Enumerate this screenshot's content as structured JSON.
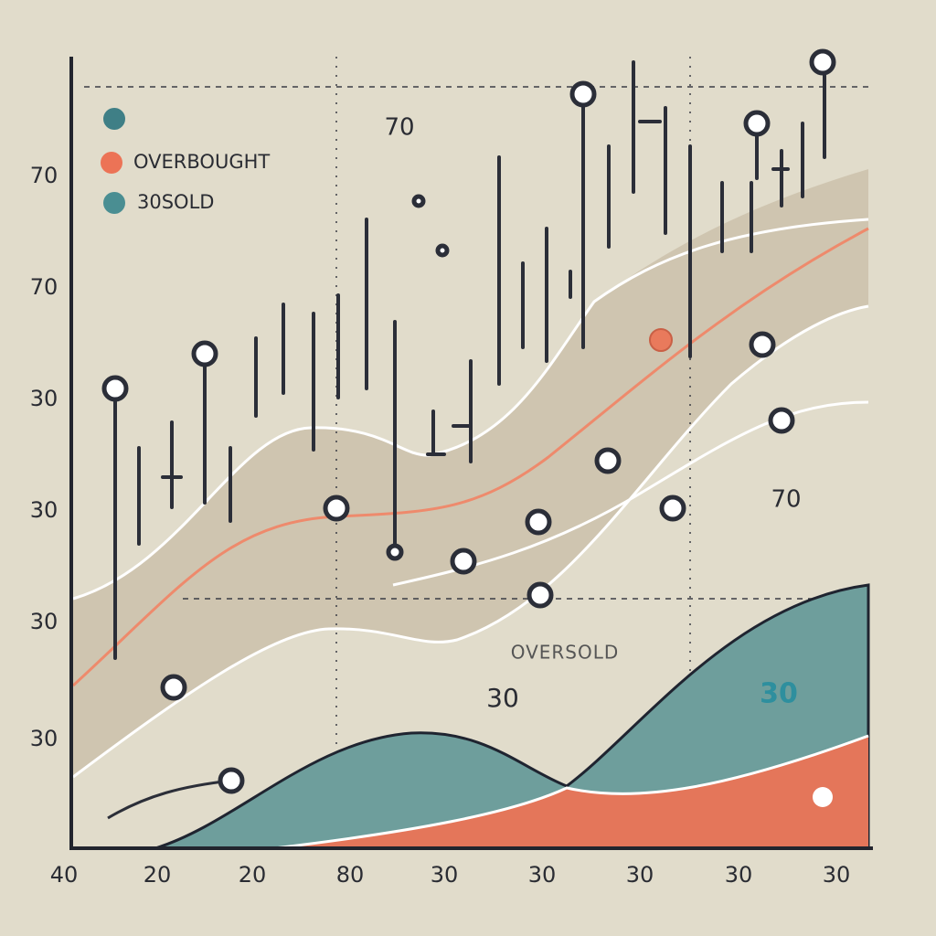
{
  "legend": [
    "OVERBOUGHT",
    "30SOLD"
  ],
  "y_labels": [
    "70",
    "70",
    "30",
    "30",
    "30",
    "30"
  ],
  "x_labels": [
    "40",
    "20",
    "20",
    "80",
    "30",
    "30",
    "30",
    "30",
    "30"
  ],
  "annotations": [
    "70",
    "70",
    "OVERSOLD",
    "30",
    "30"
  ]
}
